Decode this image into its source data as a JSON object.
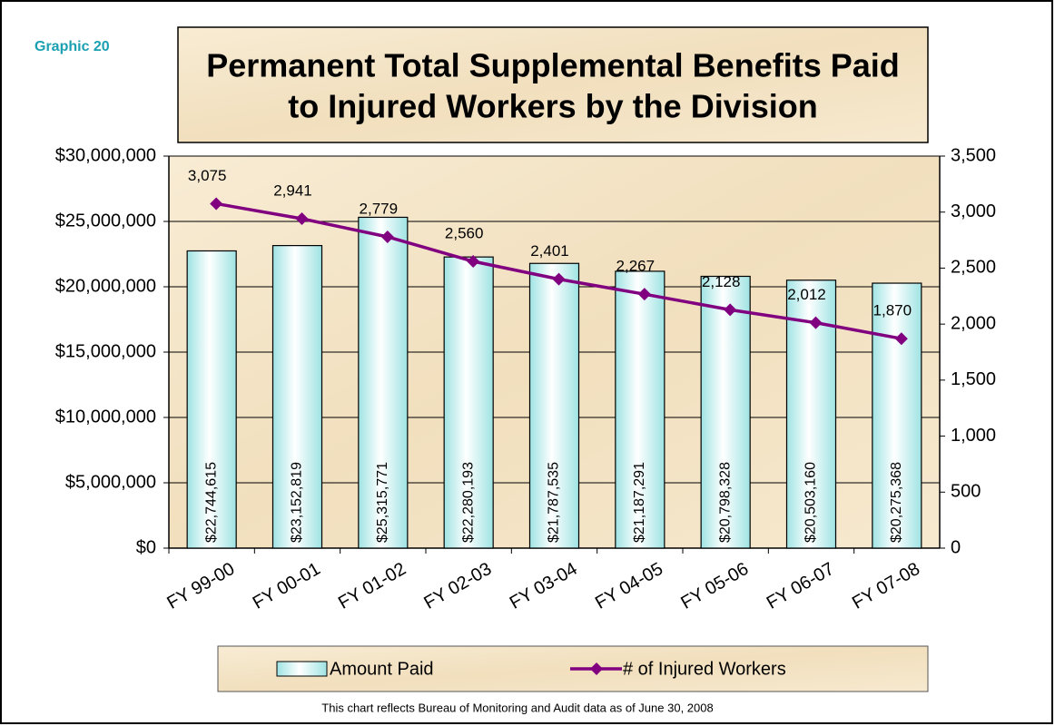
{
  "chart_data": {
    "type": "combo",
    "label": "Graphic 20",
    "title": [
      "Permanent Total Supplemental Benefits Paid",
      "to Injured Workers by the Division"
    ],
    "categories": [
      "FY 99-00",
      "FY 00-01",
      "FY 01-02",
      "FY 02-03",
      "FY 03-04",
      "FY 04-05",
      "FY 05-06",
      "FY 06-07",
      "FY 07-08"
    ],
    "series": [
      {
        "name": "Amount Paid",
        "type": "bar",
        "axis": "y",
        "color": "#9fe3e3",
        "values": [
          22744615,
          23152819,
          25315771,
          22280193,
          21787535,
          21187291,
          20798328,
          20503160,
          20275368
        ],
        "value_labels": [
          "$22,744,615",
          "$23,152,819",
          "$25,315,771",
          "$22,280,193",
          "$21,787,535",
          "$21,187,291",
          "$20,798,328",
          "$20,503,160",
          "$20,275,368"
        ]
      },
      {
        "name": "# of Injured Workers",
        "type": "line",
        "axis": "y2",
        "color": "#800080",
        "values": [
          3075,
          2941,
          2779,
          2560,
          2401,
          2267,
          2128,
          2012,
          1870
        ],
        "value_labels": [
          "3,075",
          "2,941",
          "2,779",
          "2,560",
          "2,401",
          "2,267",
          "2,128",
          "2,012",
          "1,870"
        ]
      }
    ],
    "ylim": [
      0,
      30000000
    ],
    "yticks": [
      {
        "value": 0,
        "label": "$0"
      },
      {
        "value": 5000000,
        "label": "$5,000,000"
      },
      {
        "value": 10000000,
        "label": "$10,000,000"
      },
      {
        "value": 15000000,
        "label": "$15,000,000"
      },
      {
        "value": 20000000,
        "label": "$20,000,000"
      },
      {
        "value": 25000000,
        "label": "$25,000,000"
      },
      {
        "value": 30000000,
        "label": "$30,000,000"
      }
    ],
    "y2lim": [
      0,
      3500
    ],
    "y2ticks": [
      0,
      500,
      {
        "value": 1000,
        "label": "1,000"
      },
      {
        "value": 1500,
        "label": "1,500"
      },
      {
        "value": 2000,
        "label": "2,000"
      },
      {
        "value": 2500,
        "label": "2,500"
      },
      {
        "value": 3000,
        "label": "3,000"
      },
      {
        "value": 3500,
        "label": "3,500"
      }
    ],
    "grid": true,
    "legend": "bottom",
    "footnote": "This chart reflects Bureau of Monitoring and Audit data as of June 30, 2008"
  }
}
